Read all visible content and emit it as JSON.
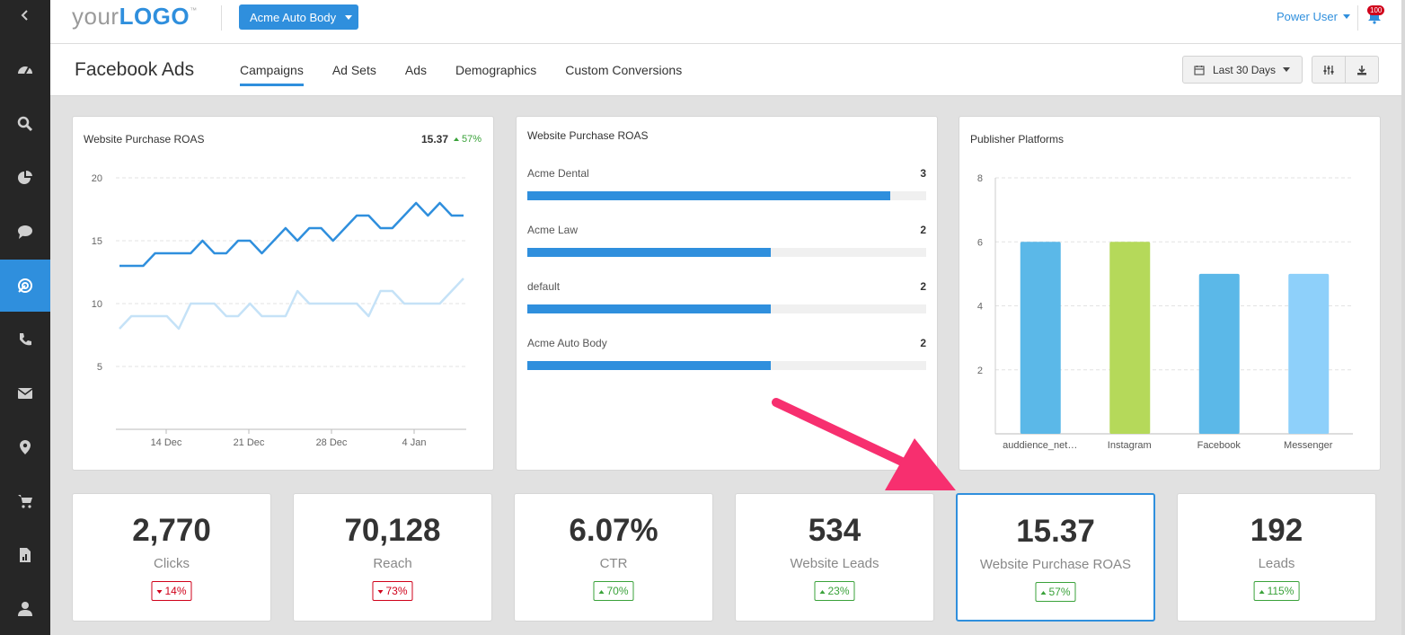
{
  "app": {
    "logo_your": "your",
    "logo_logo": "LOGO",
    "logo_tm": "™",
    "client": "Acme Auto Body",
    "user": "Power User",
    "notifications": "100"
  },
  "page": {
    "title": "Facebook Ads",
    "tabs": [
      {
        "label": "Campaigns",
        "active": true
      },
      {
        "label": "Ad Sets",
        "active": false
      },
      {
        "label": "Ads",
        "active": false
      },
      {
        "label": "Demographics",
        "active": false
      },
      {
        "label": "Custom Conversions",
        "active": false
      }
    ],
    "date_range": "Last 30 Days"
  },
  "sidebar_icons": [
    "back-icon",
    "dashboard-icon",
    "search-icon",
    "pie-chart-icon",
    "chat-icon",
    "target-icon",
    "phone-icon",
    "mail-icon",
    "location-icon",
    "cart-icon",
    "report-icon",
    "user-icon"
  ],
  "colors": {
    "accent": "#2f8fdd",
    "positive": "#3aa23a",
    "negative": "#d0021b"
  },
  "line_card": {
    "title": "Website Purchase ROAS",
    "value": "15.37",
    "delta": "57%"
  },
  "bar_card": {
    "title": "Website Purchase ROAS",
    "items": [
      {
        "label": "Acme Dental",
        "value": "3",
        "fraction": 0.91
      },
      {
        "label": "Acme Law",
        "value": "2",
        "fraction": 0.61
      },
      {
        "label": "default",
        "value": "2",
        "fraction": 0.61
      },
      {
        "label": "Acme Auto Body",
        "value": "2",
        "fraction": 0.61
      }
    ]
  },
  "column_card": {
    "title": "Publisher Platforms"
  },
  "chart_data": [
    {
      "type": "line",
      "title": "Website Purchase ROAS",
      "x_ticks": [
        "14 Dec",
        "21 Dec",
        "28 Dec",
        "4 Jan"
      ],
      "y_ticks": [
        5,
        10,
        15,
        20
      ],
      "ylim": [
        0,
        20
      ],
      "grid": true,
      "series": [
        {
          "color": "#2f8fdd",
          "values": [
            13,
            13,
            13,
            14,
            14,
            14,
            14,
            15,
            14,
            14,
            15,
            15,
            14,
            15,
            16,
            15,
            16,
            16,
            15,
            16,
            17,
            17,
            16,
            16,
            17,
            18,
            17,
            18,
            17,
            17
          ]
        },
        {
          "color": "#c5e2f7",
          "values": [
            8,
            9,
            9,
            9,
            9,
            8,
            10,
            10,
            10,
            9,
            9,
            10,
            9,
            9,
            9,
            11,
            10,
            10,
            10,
            10,
            10,
            9,
            11,
            11,
            10,
            10,
            10,
            10,
            11,
            12
          ]
        }
      ]
    },
    {
      "type": "bar",
      "title": "Publisher Platforms",
      "categories": [
        "auddience_net…",
        "Instagram",
        "Facebook",
        "Messenger"
      ],
      "values": [
        6,
        6,
        5,
        5
      ],
      "colors": [
        "#5bb8e8",
        "#b5d95a",
        "#5bb8e8",
        "#8ed0fa"
      ],
      "y_ticks": [
        2,
        4,
        6,
        8
      ],
      "ylim": [
        0,
        8
      ],
      "grid": true
    }
  ],
  "kpis": [
    {
      "value": "2,770",
      "label": "Clicks",
      "delta": "14%",
      "direction": "down"
    },
    {
      "value": "70,128",
      "label": "Reach",
      "delta": "73%",
      "direction": "down"
    },
    {
      "value": "6.07%",
      "label": "CTR",
      "delta": "70%",
      "direction": "up"
    },
    {
      "value": "534",
      "label": "Website Leads",
      "delta": "23%",
      "direction": "up"
    },
    {
      "value": "15.37",
      "label": "Website Purchase ROAS",
      "delta": "57%",
      "direction": "up",
      "selected": true
    },
    {
      "value": "192",
      "label": "Leads",
      "delta": "115%",
      "direction": "up"
    }
  ]
}
